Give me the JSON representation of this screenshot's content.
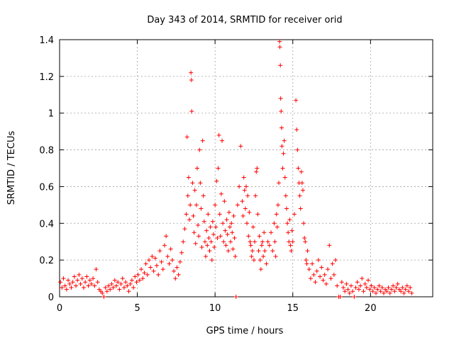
{
  "chart_data": {
    "type": "scatter",
    "title": "Day 343 of 2014, SRMTID for receiver orid",
    "xlabel": "GPS time / hours",
    "ylabel": "SRMTID / TECUs",
    "xlim": [
      0,
      24
    ],
    "ylim": [
      0,
      1.4
    ],
    "xticks": [
      0,
      5,
      10,
      15,
      20
    ],
    "yticks": [
      0,
      0.2,
      0.4,
      0.6,
      0.8,
      1,
      1.2,
      1.4
    ],
    "ytick_labels": [
      "0",
      "0.2",
      "0.4",
      "0.6",
      "0.8",
      "1",
      "1.2",
      "1.4"
    ],
    "grid": true,
    "marker": "+",
    "series": [
      {
        "name": "SRMTID",
        "color": "#ff0000",
        "points": [
          [
            0.05,
            0.08
          ],
          [
            0.15,
            0.05
          ],
          [
            0.25,
            0.1
          ],
          [
            0.35,
            0.06
          ],
          [
            0.45,
            0.04
          ],
          [
            0.55,
            0.09
          ],
          [
            0.65,
            0.07
          ],
          [
            0.75,
            0.05
          ],
          [
            0.85,
            0.08
          ],
          [
            0.95,
            0.11
          ],
          [
            1.05,
            0.06
          ],
          [
            1.15,
            0.09
          ],
          [
            1.25,
            0.12
          ],
          [
            1.35,
            0.07
          ],
          [
            1.45,
            0.1
          ],
          [
            1.55,
            0.05
          ],
          [
            1.65,
            0.08
          ],
          [
            1.75,
            0.11
          ],
          [
            1.85,
            0.06
          ],
          [
            1.95,
            0.09
          ],
          [
            2.05,
            0.07
          ],
          [
            2.15,
            0.1
          ],
          [
            2.25,
            0.06
          ],
          [
            2.35,
            0.15
          ],
          [
            2.45,
            0.08
          ],
          [
            2.55,
            0.04
          ],
          [
            2.65,
            0.03
          ],
          [
            2.75,
            0.02
          ],
          [
            2.85,
            0.0
          ],
          [
            2.95,
            0.05
          ],
          [
            3.05,
            0.03
          ],
          [
            3.15,
            0.06
          ],
          [
            3.25,
            0.04
          ],
          [
            3.35,
            0.07
          ],
          [
            3.45,
            0.05
          ],
          [
            3.55,
            0.09
          ],
          [
            3.65,
            0.06
          ],
          [
            3.75,
            0.08
          ],
          [
            3.85,
            0.04
          ],
          [
            3.95,
            0.07
          ],
          [
            4.05,
            0.1
          ],
          [
            4.15,
            0.05
          ],
          [
            4.25,
            0.08
          ],
          [
            4.35,
            0.06
          ],
          [
            4.45,
            0.03
          ],
          [
            4.55,
            0.07
          ],
          [
            4.65,
            0.09
          ],
          [
            4.75,
            0.05
          ],
          [
            4.85,
            0.11
          ],
          [
            4.95,
            0.08
          ],
          [
            5.05,
            0.12
          ],
          [
            5.15,
            0.09
          ],
          [
            5.25,
            0.15
          ],
          [
            5.35,
            0.1
          ],
          [
            5.45,
            0.13
          ],
          [
            5.55,
            0.18
          ],
          [
            5.65,
            0.12
          ],
          [
            5.75,
            0.2
          ],
          [
            5.85,
            0.16
          ],
          [
            5.95,
            0.22
          ],
          [
            6.05,
            0.14
          ],
          [
            6.15,
            0.21
          ],
          [
            6.25,
            0.17
          ],
          [
            6.35,
            0.12
          ],
          [
            6.45,
            0.25
          ],
          [
            6.55,
            0.19
          ],
          [
            6.65,
            0.15
          ],
          [
            6.75,
            0.28
          ],
          [
            6.85,
            0.33
          ],
          [
            6.95,
            0.22
          ],
          [
            7.05,
            0.18
          ],
          [
            7.15,
            0.26
          ],
          [
            7.25,
            0.2
          ],
          [
            7.35,
            0.14
          ],
          [
            7.45,
            0.1
          ],
          [
            7.55,
            0.16
          ],
          [
            7.65,
            0.12
          ],
          [
            7.75,
            0.19
          ],
          [
            7.85,
            0.24
          ],
          [
            7.95,
            0.3
          ],
          [
            8.05,
            0.37
          ],
          [
            8.15,
            0.45
          ],
          [
            8.2,
            0.87
          ],
          [
            8.25,
            0.55
          ],
          [
            8.3,
            0.65
          ],
          [
            8.35,
            0.42
          ],
          [
            8.4,
            0.5
          ],
          [
            8.45,
            1.22
          ],
          [
            8.48,
            1.18
          ],
          [
            8.5,
            1.01
          ],
          [
            8.55,
            0.62
          ],
          [
            8.6,
            0.44
          ],
          [
            8.65,
            0.35
          ],
          [
            8.7,
            0.58
          ],
          [
            8.75,
            0.29
          ],
          [
            8.8,
            0.5
          ],
          [
            8.85,
            0.7
          ],
          [
            8.9,
            0.39
          ],
          [
            8.95,
            0.33
          ],
          [
            9.0,
            0.8
          ],
          [
            9.05,
            0.62
          ],
          [
            9.1,
            0.48
          ],
          [
            9.15,
            0.27
          ],
          [
            9.2,
            0.85
          ],
          [
            9.25,
            0.55
          ],
          [
            9.3,
            0.41
          ],
          [
            9.35,
            0.3
          ],
          [
            9.4,
            0.22
          ],
          [
            9.45,
            0.36
          ],
          [
            9.5,
            0.28
          ],
          [
            9.55,
            0.45
          ],
          [
            9.6,
            0.32
          ],
          [
            9.65,
            0.25
          ],
          [
            9.7,
            0.38
          ],
          [
            9.75,
            0.3
          ],
          [
            9.8,
            0.2
          ],
          [
            9.85,
            0.41
          ],
          [
            9.9,
            0.34
          ],
          [
            9.95,
            0.27
          ],
          [
            10.0,
            0.5
          ],
          [
            10.05,
            0.38
          ],
          [
            10.1,
            0.63
          ],
          [
            10.15,
            0.32
          ],
          [
            10.2,
            0.7
          ],
          [
            10.25,
            0.88
          ],
          [
            10.3,
            0.45
          ],
          [
            10.35,
            0.33
          ],
          [
            10.4,
            0.56
          ],
          [
            10.45,
            0.85
          ],
          [
            10.5,
            0.4
          ],
          [
            10.55,
            0.3
          ],
          [
            10.6,
            0.52
          ],
          [
            10.65,
            0.36
          ],
          [
            10.7,
            0.28
          ],
          [
            10.75,
            0.42
          ],
          [
            10.8,
            0.34
          ],
          [
            10.85,
            0.25
          ],
          [
            10.9,
            0.46
          ],
          [
            10.95,
            0.38
          ],
          [
            11.0,
            0.3
          ],
          [
            11.05,
            0.4
          ],
          [
            11.1,
            0.35
          ],
          [
            11.15,
            0.26
          ],
          [
            11.2,
            0.44
          ],
          [
            11.25,
            0.32
          ],
          [
            11.3,
            0.22
          ],
          [
            11.35,
            0.0
          ],
          [
            11.45,
            0.5
          ],
          [
            11.55,
            0.6
          ],
          [
            11.65,
            0.82
          ],
          [
            11.75,
            0.52
          ],
          [
            11.8,
            0.44
          ],
          [
            11.85,
            0.65
          ],
          [
            11.9,
            0.58
          ],
          [
            11.95,
            0.48
          ],
          [
            12.0,
            0.6
          ],
          [
            12.05,
            0.4
          ],
          [
            12.1,
            0.55
          ],
          [
            12.15,
            0.33
          ],
          [
            12.2,
            0.46
          ],
          [
            12.25,
            0.3
          ],
          [
            12.3,
            0.28
          ],
          [
            12.35,
            0.22
          ],
          [
            12.4,
            0.25
          ],
          [
            12.45,
            0.38
          ],
          [
            12.5,
            0.2
          ],
          [
            12.55,
            0.3
          ],
          [
            12.6,
            0.55
          ],
          [
            12.65,
            0.68
          ],
          [
            12.7,
            0.7
          ],
          [
            12.75,
            0.45
          ],
          [
            12.8,
            0.25
          ],
          [
            12.85,
            0.33
          ],
          [
            12.9,
            0.2
          ],
          [
            12.95,
            0.15
          ],
          [
            13.0,
            0.28
          ],
          [
            13.05,
            0.3
          ],
          [
            13.1,
            0.22
          ],
          [
            13.15,
            0.35
          ],
          [
            13.2,
            0.25
          ],
          [
            13.3,
            0.18
          ],
          [
            13.4,
            0.3
          ],
          [
            13.5,
            0.28
          ],
          [
            13.6,
            0.35
          ],
          [
            13.7,
            0.25
          ],
          [
            13.8,
            0.4
          ],
          [
            13.85,
            0.3
          ],
          [
            13.9,
            0.22
          ],
          [
            13.95,
            0.45
          ],
          [
            14.0,
            0.38
          ],
          [
            14.05,
            0.5
          ],
          [
            14.1,
            0.62
          ],
          [
            14.15,
            1.39
          ],
          [
            14.17,
            1.36
          ],
          [
            14.2,
            1.26
          ],
          [
            14.22,
            1.08
          ],
          [
            14.25,
            1.01
          ],
          [
            14.28,
            0.92
          ],
          [
            14.3,
            0.82
          ],
          [
            14.35,
            0.7
          ],
          [
            14.4,
            0.78
          ],
          [
            14.45,
            0.85
          ],
          [
            14.5,
            0.65
          ],
          [
            14.55,
            0.55
          ],
          [
            14.6,
            0.48
          ],
          [
            14.65,
            0.4
          ],
          [
            14.7,
            0.35
          ],
          [
            14.75,
            0.3
          ],
          [
            14.8,
            0.42
          ],
          [
            14.85,
            0.28
          ],
          [
            14.9,
            0.25
          ],
          [
            14.95,
            0.36
          ],
          [
            15.0,
            0.3
          ],
          [
            15.1,
            0.45
          ],
          [
            15.2,
            1.07
          ],
          [
            15.25,
            0.91
          ],
          [
            15.3,
            0.8
          ],
          [
            15.35,
            0.7
          ],
          [
            15.4,
            0.62
          ],
          [
            15.45,
            0.55
          ],
          [
            15.5,
            0.48
          ],
          [
            15.55,
            0.68
          ],
          [
            15.6,
            0.62
          ],
          [
            15.65,
            0.58
          ],
          [
            15.7,
            0.4
          ],
          [
            15.75,
            0.32
          ],
          [
            15.8,
            0.3
          ],
          [
            15.85,
            0.2
          ],
          [
            15.9,
            0.18
          ],
          [
            15.95,
            0.25
          ],
          [
            16.05,
            0.15
          ],
          [
            16.15,
            0.1
          ],
          [
            16.25,
            0.18
          ],
          [
            16.35,
            0.12
          ],
          [
            16.45,
            0.08
          ],
          [
            16.55,
            0.14
          ],
          [
            16.65,
            0.2
          ],
          [
            16.75,
            0.11
          ],
          [
            16.85,
            0.16
          ],
          [
            16.95,
            0.09
          ],
          [
            17.05,
            0.12
          ],
          [
            17.15,
            0.07
          ],
          [
            17.25,
            0.15
          ],
          [
            17.35,
            0.28
          ],
          [
            17.45,
            0.1
          ],
          [
            17.55,
            0.18
          ],
          [
            17.65,
            0.12
          ],
          [
            17.75,
            0.2
          ],
          [
            17.85,
            0.06
          ],
          [
            17.95,
            0.0
          ],
          [
            18.05,
            0.0
          ],
          [
            18.15,
            0.08
          ],
          [
            18.25,
            0.05
          ],
          [
            18.35,
            0.03
          ],
          [
            18.45,
            0.07
          ],
          [
            18.55,
            0.04
          ],
          [
            18.65,
            0.02
          ],
          [
            18.75,
            0.06
          ],
          [
            18.85,
            0.03
          ],
          [
            18.95,
            0.0
          ],
          [
            19.05,
            0.05
          ],
          [
            19.15,
            0.08
          ],
          [
            19.25,
            0.04
          ],
          [
            19.35,
            0.06
          ],
          [
            19.45,
            0.1
          ],
          [
            19.55,
            0.03
          ],
          [
            19.65,
            0.07
          ],
          [
            19.75,
            0.05
          ],
          [
            19.85,
            0.09
          ],
          [
            19.95,
            0.04
          ],
          [
            20.05,
            0.06
          ],
          [
            20.15,
            0.03
          ],
          [
            20.25,
            0.05
          ],
          [
            20.35,
            0.02
          ],
          [
            20.45,
            0.04
          ],
          [
            20.55,
            0.06
          ],
          [
            20.65,
            0.03
          ],
          [
            20.75,
            0.05
          ],
          [
            20.85,
            0.02
          ],
          [
            20.95,
            0.04
          ],
          [
            21.05,
            0.03
          ],
          [
            21.15,
            0.05
          ],
          [
            21.25,
            0.02
          ],
          [
            21.35,
            0.04
          ],
          [
            21.45,
            0.06
          ],
          [
            21.55,
            0.03
          ],
          [
            21.65,
            0.05
          ],
          [
            21.75,
            0.07
          ],
          [
            21.85,
            0.04
          ],
          [
            21.95,
            0.03
          ],
          [
            22.05,
            0.05
          ],
          [
            22.15,
            0.02
          ],
          [
            22.25,
            0.04
          ],
          [
            22.35,
            0.06
          ],
          [
            22.45,
            0.03
          ],
          [
            22.55,
            0.05
          ],
          [
            22.65,
            0.02
          ]
        ]
      }
    ]
  }
}
